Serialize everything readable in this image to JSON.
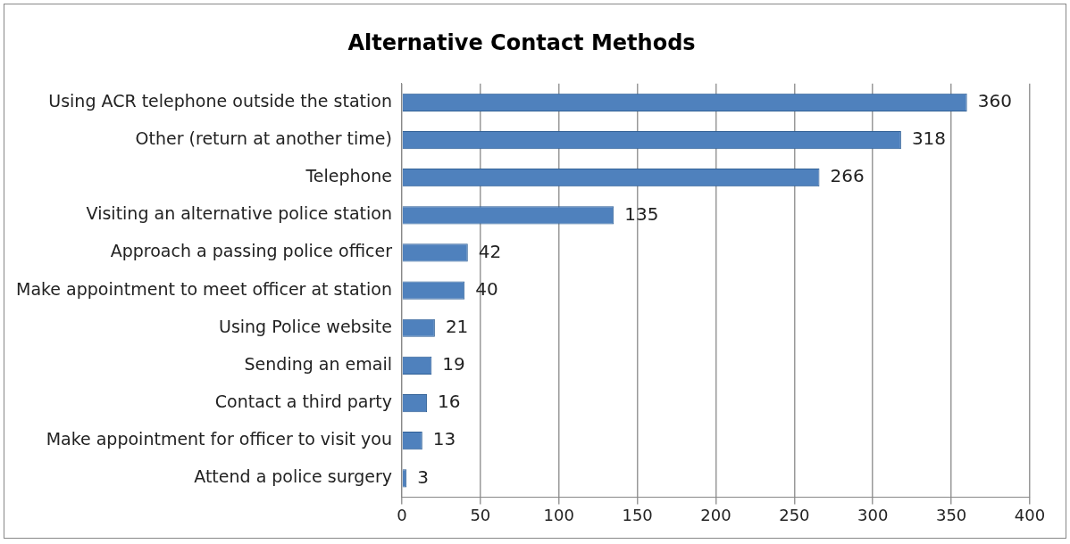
{
  "chart_data": {
    "type": "bar",
    "orientation": "horizontal",
    "title": "Alternative Contact Methods",
    "categories": [
      "Using ACR telephone outside the station",
      "Other (return at another time)",
      "Telephone",
      "Visiting an alternative police station",
      "Approach a passing police officer",
      "Make appointment to meet officer at station",
      "Using Police website",
      "Sending an email",
      "Contact a third party",
      "Make appointment for officer to visit you",
      "Attend a police surgery"
    ],
    "values": [
      360,
      318,
      266,
      135,
      42,
      40,
      21,
      19,
      16,
      13,
      3
    ],
    "color": "#4f81bd",
    "xlim": [
      0,
      400
    ],
    "xticks": [
      0,
      50,
      100,
      150,
      200,
      250,
      300,
      350,
      400
    ],
    "grid": "x",
    "legend": false,
    "data_labels": true
  }
}
